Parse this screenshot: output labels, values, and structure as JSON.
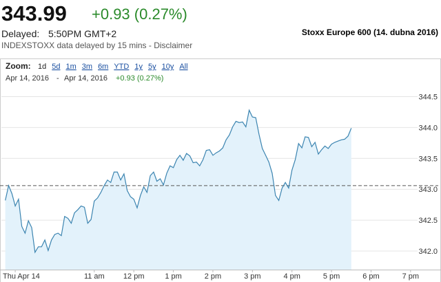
{
  "header": {
    "price": "343.99",
    "change": "+0.93 (0.27%)",
    "delayed_label": "Delayed:",
    "time": "5:50PM GMT+2",
    "disclaimer": "INDEXSTOXX data delayed by 15 mins - Disclaimer",
    "title": "Stoxx Europe 600 (14. dubna 2016)"
  },
  "toolbar": {
    "zoom_label": "Zoom:",
    "zoom_options": [
      "1d",
      "5d",
      "1m",
      "3m",
      "6m",
      "YTD",
      "1y",
      "5y",
      "10y",
      "All"
    ],
    "range_start": "Apr 14, 2016",
    "range_separator": "-",
    "range_end": "Apr 14, 2016",
    "range_change": "+0.93 (0.27%)"
  },
  "chart_data": {
    "type": "area",
    "x": [
      525,
      530,
      535,
      540,
      545,
      550,
      555,
      560,
      565,
      570,
      575,
      580,
      585,
      590,
      595,
      600,
      605,
      610,
      615,
      620,
      625,
      630,
      635,
      640,
      645,
      650,
      655,
      660,
      665,
      670,
      675,
      680,
      685,
      690,
      695,
      700,
      705,
      710,
      715,
      720,
      725,
      730,
      735,
      740,
      745,
      750,
      755,
      760,
      765,
      770,
      775,
      780,
      785,
      790,
      795,
      800,
      805,
      810,
      815,
      820,
      825,
      830,
      835,
      840,
      845,
      850,
      855,
      860,
      865,
      870,
      875,
      880,
      885,
      890,
      895,
      900,
      905,
      910,
      915,
      920,
      925,
      930,
      935,
      940,
      945,
      950,
      955,
      960,
      965,
      970,
      975,
      980,
      985,
      990,
      995,
      1000,
      1005,
      1010,
      1015,
      1020,
      1025,
      1030,
      1035,
      1040,
      1045,
      1050
    ],
    "series": [
      {
        "color": "#3b84b0",
        "fill": "#e3f2fb",
        "values": [
          342.82,
          343.06,
          342.93,
          342.73,
          342.84,
          342.4,
          342.29,
          342.49,
          342.38,
          341.98,
          342.07,
          342.07,
          342.18,
          342.01,
          342.18,
          342.27,
          342.29,
          342.25,
          342.56,
          342.53,
          342.45,
          342.62,
          342.67,
          342.73,
          342.71,
          342.45,
          342.51,
          342.81,
          342.86,
          342.95,
          343.06,
          343.15,
          343.11,
          343.28,
          343.28,
          343.15,
          343.25,
          342.98,
          342.88,
          342.84,
          342.7,
          342.9,
          343.04,
          342.95,
          343.22,
          343.28,
          343.13,
          343.17,
          343.07,
          343.26,
          343.38,
          343.35,
          343.48,
          343.55,
          343.47,
          343.58,
          343.54,
          343.43,
          343.44,
          343.38,
          343.48,
          343.63,
          343.64,
          343.55,
          343.59,
          343.62,
          343.67,
          343.8,
          343.88,
          344.01,
          344.1,
          344.08,
          344.09,
          344.01,
          344.28,
          344.17,
          344.16,
          343.89,
          343.66,
          343.55,
          343.44,
          343.26,
          342.9,
          342.82,
          343.02,
          343.11,
          343.02,
          343.31,
          343.48,
          343.74,
          343.67,
          343.85,
          343.84,
          343.69,
          343.76,
          343.57,
          343.64,
          343.7,
          343.66,
          343.73,
          343.76,
          343.78,
          343.8,
          343.81,
          343.86,
          343.99
        ]
      }
    ],
    "xlim": [
      519,
      1182
    ],
    "xticks": [
      {
        "value": 540,
        "label": "Thu Apr 14"
      },
      {
        "value": 660,
        "label": "11 am"
      },
      {
        "value": 720,
        "label": "12 pm"
      },
      {
        "value": 780,
        "label": "1 pm"
      },
      {
        "value": 840,
        "label": "2 pm"
      },
      {
        "value": 900,
        "label": "3 pm"
      },
      {
        "value": 960,
        "label": "4 pm"
      },
      {
        "value": 1020,
        "label": "5 pm"
      },
      {
        "value": 1080,
        "label": "6 pm"
      },
      {
        "value": 1140,
        "label": "7 pm"
      }
    ],
    "ylim": [
      341.7,
      344.75
    ],
    "yticks": [
      {
        "value": 342,
        "label": "342.0"
      },
      342.5,
      {
        "value": 343,
        "label": "343.0"
      },
      343.5,
      {
        "value": 344,
        "label": "344.0"
      },
      344.5
    ],
    "grid": true,
    "reference_line": {
      "value": 343.06,
      "style": "dashed"
    }
  }
}
